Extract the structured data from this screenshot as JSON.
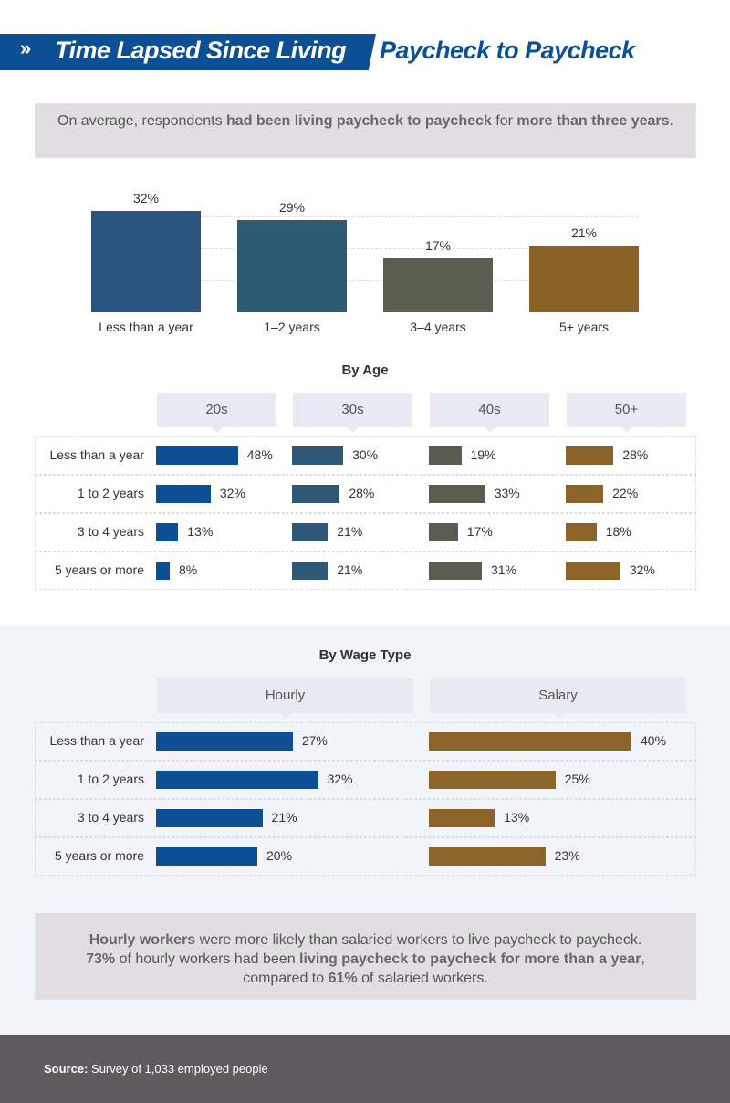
{
  "title": {
    "part1": "Time Lapsed Since Living",
    "part2": "Paycheck to Paycheck",
    "icon": "double-chevron-right-icon"
  },
  "callout_top": {
    "t1": "On average, respondents ",
    "b1": "had been living paycheck to paycheck",
    "t2": " for ",
    "b2": "more than three years",
    "t3": "."
  },
  "colors": {
    "blue": "#0d4f94",
    "slate": "#2e5876",
    "olive": "#585d4f",
    "brown": "#8a6428",
    "overall": [
      "#2c5480",
      "#2e5a72",
      "#595e4e",
      "#8a6226"
    ]
  },
  "chart_data": [
    {
      "type": "bar",
      "title": "",
      "categories": [
        "Less than a year",
        "1–2 years",
        "3–4 years",
        "5+ years"
      ],
      "values": [
        32,
        29,
        17,
        21
      ],
      "labels": [
        "32%",
        "29%",
        "17%",
        "21%"
      ],
      "ylim": [
        0,
        40
      ],
      "grid": true
    },
    {
      "type": "bar",
      "orientation": "horizontal",
      "title": "By Age",
      "categories": [
        "Less than a year",
        "1 to 2 years",
        "3 to 4 years",
        "5 years or more"
      ],
      "series": [
        {
          "name": "20s",
          "values": [
            48,
            32,
            13,
            8
          ],
          "labels": [
            "48%",
            "32%",
            "13%",
            "8%"
          ]
        },
        {
          "name": "30s",
          "values": [
            30,
            28,
            21,
            21
          ],
          "labels": [
            "30%",
            "28%",
            "21%",
            "21%"
          ]
        },
        {
          "name": "40s",
          "values": [
            19,
            33,
            17,
            31
          ],
          "labels": [
            "19%",
            "33%",
            "17%",
            "31%"
          ]
        },
        {
          "name": "50+",
          "values": [
            28,
            22,
            18,
            32
          ],
          "labels": [
            "28%",
            "22%",
            "18%",
            "32%"
          ]
        }
      ]
    },
    {
      "type": "bar",
      "orientation": "horizontal",
      "title": "By Wage Type",
      "categories": [
        "Less than a year",
        "1 to 2 years",
        "3 to 4 years",
        "5 years or more"
      ],
      "series": [
        {
          "name": "Hourly",
          "values": [
            27,
            32,
            21,
            20
          ],
          "labels": [
            "27%",
            "32%",
            "21%",
            "20%"
          ]
        },
        {
          "name": "Salary",
          "values": [
            40,
            25,
            13,
            23
          ],
          "labels": [
            "40%",
            "25%",
            "13%",
            "23%"
          ]
        }
      ]
    }
  ],
  "callout_bottom": {
    "b1": "Hourly workers",
    "t1": " were more likely than salaried workers to live paycheck to paycheck. ",
    "b2": "73%",
    "t2": " of hourly workers had been ",
    "b3": "living paycheck to paycheck for more than a year",
    "t3": ", compared to ",
    "b4": "61%",
    "t4": " of salaried workers."
  },
  "footer": {
    "label": "Source:",
    "text": " Survey of 1,033 employed people"
  }
}
